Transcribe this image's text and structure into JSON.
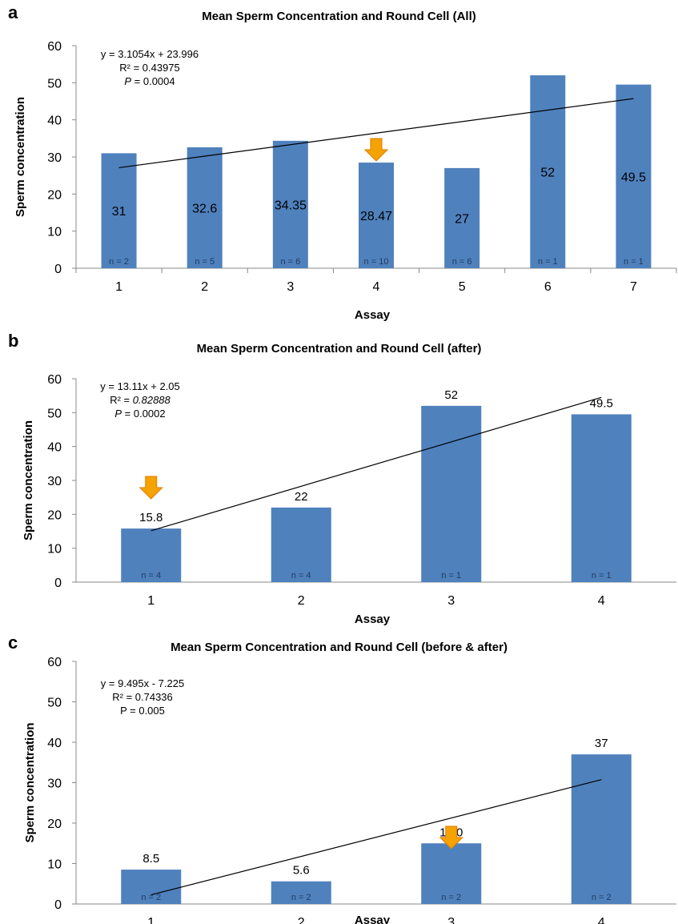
{
  "chart_data": [
    {
      "panel": "a",
      "type": "bar",
      "title": "Mean Sperm Concentration and Round Cell (All)",
      "xlabel": "Assay",
      "ylabel": "Sperm concentration",
      "categories": [
        "1",
        "2",
        "3",
        "4",
        "5",
        "6",
        "7"
      ],
      "values": [
        31,
        32.6,
        34.35,
        28.47,
        27,
        52,
        49.5
      ],
      "value_labels": [
        "31",
        "32.6",
        "34.35",
        "28.47",
        "27",
        "52",
        "49.5"
      ],
      "n_labels": [
        "n = 2",
        "n = 5",
        "n = 6",
        "n = 10",
        "n = 6",
        "n = 1",
        "n = 1"
      ],
      "yticks": [
        "0",
        "10",
        "20",
        "30",
        "40",
        "50",
        "60"
      ],
      "ylim": [
        0,
        60
      ],
      "trendline": {
        "slope": 3.1054,
        "intercept": 23.996
      },
      "equation": {
        "line1": "y = 3.1054x + 23.996",
        "line2": "R² = 0.43975",
        "p_label": "P",
        "p_value": " = 0.0004"
      },
      "marker_category": "4",
      "bar_color": "#4f81bd",
      "arrow_color": "#f4a300"
    },
    {
      "panel": "b",
      "type": "bar",
      "title": "Mean Sperm Concentration and Round Cell (after)",
      "xlabel": "Assay",
      "ylabel": "Sperm concentration",
      "categories": [
        "1",
        "2",
        "3",
        "4"
      ],
      "values": [
        15.8,
        22,
        52,
        49.5
      ],
      "value_labels": [
        "15.8",
        "22",
        "52",
        "49.5"
      ],
      "n_labels": [
        "n = 4",
        "n = 4",
        "n = 1",
        "n = 1"
      ],
      "yticks": [
        "0",
        "10",
        "20",
        "30",
        "40",
        "50",
        "60"
      ],
      "ylim": [
        0,
        60
      ],
      "trendline": {
        "slope": 13.11,
        "intercept": 2.05
      },
      "equation": {
        "line1": "y = 13.11x + 2.05",
        "line2_prefix": "R² = ",
        "line2_value": "0.82888",
        "p_label": "P",
        "p_value": " = 0.0002"
      },
      "marker_category": "1",
      "bar_color": "#4f81bd",
      "arrow_color": "#f4a300"
    },
    {
      "panel": "c",
      "type": "bar",
      "title": "Mean Sperm Concentration and Round Cell (before & after)",
      "xlabel": "Assay",
      "ylabel": "Sperm concentration",
      "categories": [
        "1",
        "2",
        "3",
        "4"
      ],
      "values": [
        8.5,
        5.6,
        15.0,
        37
      ],
      "value_labels": [
        "8.5",
        "5.6",
        "15.0",
        "37"
      ],
      "n_labels": [
        "n = 2",
        "n = 2",
        "n = 2",
        "n = 2"
      ],
      "yticks": [
        "0",
        "10",
        "20",
        "30",
        "40",
        "50",
        "60"
      ],
      "ylim": [
        0,
        60
      ],
      "trendline": {
        "slope": 9.495,
        "intercept": -7.225
      },
      "equation": {
        "line1": "y = 9.495x - 7.225",
        "line2": "R² = 0.74336",
        "p_value": "P = 0.005"
      },
      "marker_category": "3",
      "bar_color": "#4f81bd",
      "arrow_color": "#f4a300"
    }
  ]
}
